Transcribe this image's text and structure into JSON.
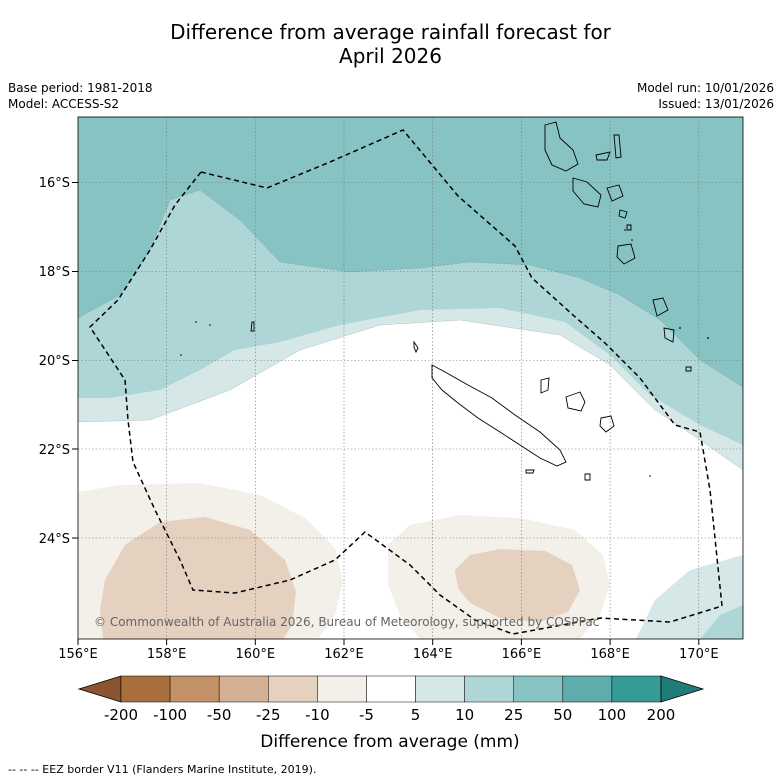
{
  "title_line1": "Difference from average rainfall forecast for",
  "title_line2": "April 2026",
  "base_period": "Base period: 1981-2018",
  "model": "Model: ACCESS-S2",
  "model_run": "Model run: 10/01/2026",
  "issued": "Issued: 13/01/2026",
  "lat_labels": [
    "16°S",
    "18°S",
    "20°S",
    "22°S",
    "24°S"
  ],
  "lon_labels": [
    "156°E",
    "158°E",
    "160°E",
    "162°E",
    "164°E",
    "166°E",
    "168°E",
    "170°E"
  ],
  "copyright": "© Commonwealth of Australia 2026, Bureau of Meteorology, supported by COSPPac",
  "colorbar": {
    "ticks": [
      "-200",
      "-100",
      "-50",
      "-25",
      "-10",
      "-5",
      "5",
      "10",
      "25",
      "50",
      "100",
      "200"
    ],
    "colors": [
      "#a86f3c",
      "#c29266",
      "#d4b194",
      "#e5d1c0",
      "#f3efe9",
      "#ffffff",
      "#d5e8e7",
      "#afd6d6",
      "#87c3c2",
      "#5eacab",
      "#369a97"
    ],
    "extend_low_color": "#8a5530",
    "extend_high_color": "#1f7c79",
    "label": "Difference from average (mm)"
  },
  "footnote": "--  --  -- EEZ border V11 (Flanders Marine Institute, 2019)."
}
